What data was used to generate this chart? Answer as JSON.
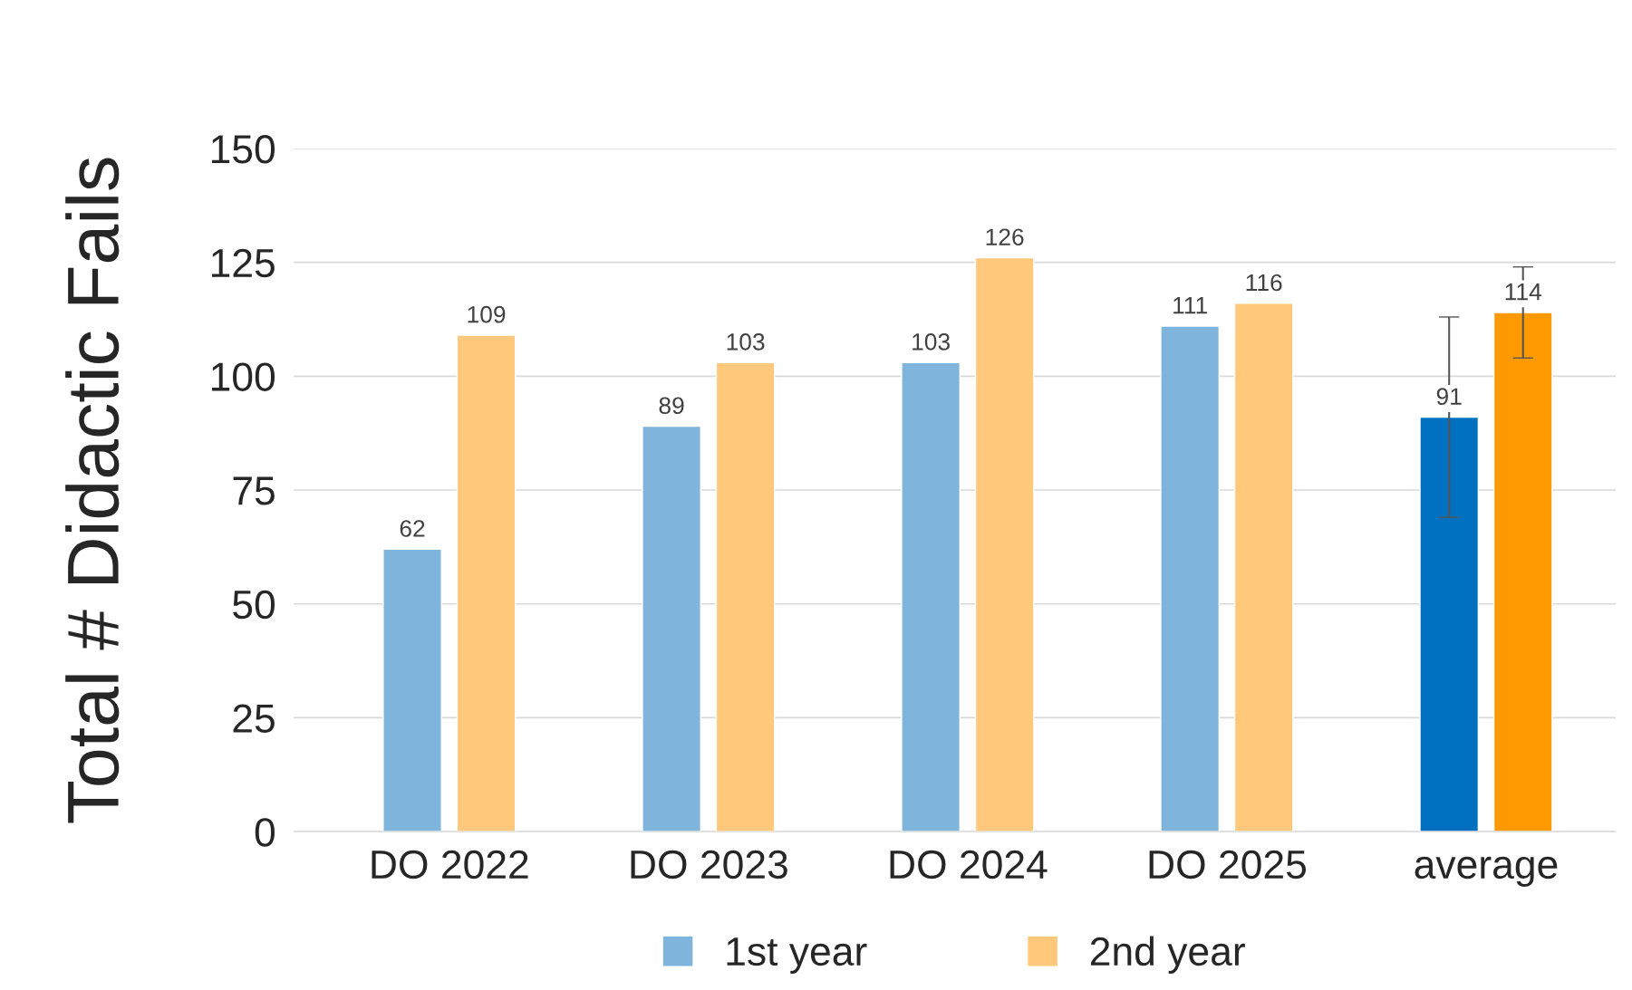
{
  "chart_data": {
    "type": "bar",
    "ylabel": "Total # Didactic Fails",
    "categories": [
      "DO 2022",
      "DO 2023",
      "DO 2024",
      "DO 2025",
      "average"
    ],
    "series": [
      {
        "name": "1st year",
        "color": "#7fb4dd",
        "colors": [
          "#7fb4dd",
          "#7fb4dd",
          "#7fb4dd",
          "#7fb4dd",
          "#0070c0"
        ],
        "values": [
          62,
          89,
          103,
          111,
          91
        ],
        "errors": [
          null,
          null,
          null,
          null,
          22
        ]
      },
      {
        "name": "2nd year",
        "color": "#ffc87a",
        "colors": [
          "#ffc87a",
          "#ffc87a",
          "#ffc87a",
          "#ffc87a",
          "#ff9900"
        ],
        "values": [
          109,
          103,
          126,
          116,
          114
        ],
        "errors": [
          null,
          null,
          null,
          null,
          10
        ]
      }
    ],
    "ylim": [
      0,
      150
    ],
    "yticks": [
      0,
      25,
      50,
      75,
      100,
      125,
      150
    ],
    "grid": "y",
    "legend": "bottom",
    "data_labels": true
  }
}
